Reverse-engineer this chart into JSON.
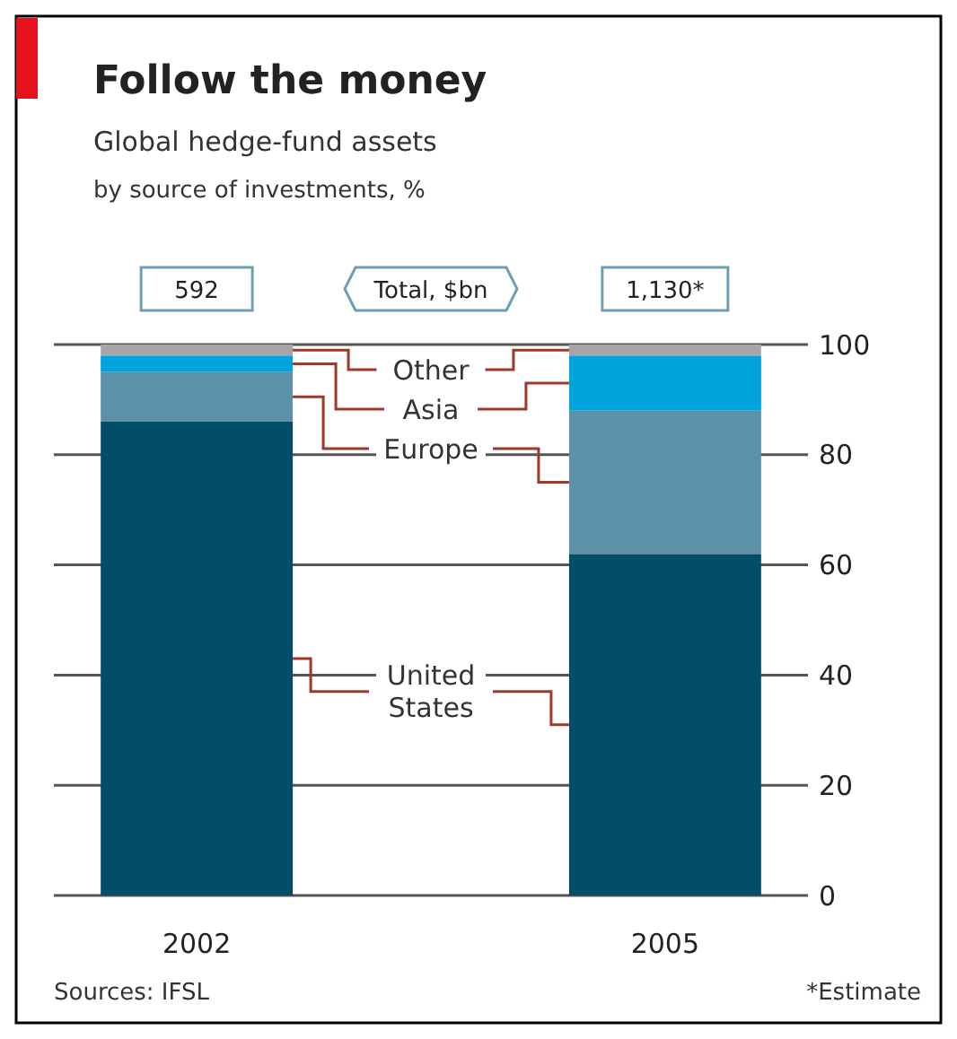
{
  "chart_data": {
    "type": "bar",
    "title": "Follow the money",
    "subtitle": "Global hedge-fund assets",
    "categories": [
      "2002",
      "2005"
    ],
    "series": [
      {
        "name": "United States",
        "color": "#024e68",
        "values": [
          86,
          62
        ]
      },
      {
        "name": "Europe",
        "color": "#5d91a8",
        "values": [
          9,
          26
        ]
      },
      {
        "name": "Asia",
        "color": "#00a3dc",
        "values": [
          3,
          10
        ]
      },
      {
        "name": "Other",
        "color": "#a6a6a6",
        "values": [
          2,
          2
        ]
      }
    ],
    "stacked": true,
    "ylim": [
      0,
      100
    ],
    "yticks": [
      0,
      20,
      40,
      60,
      80,
      100
    ],
    "grid": "y",
    "legend": false,
    "annotations": [
      "by source of investments, %",
      {
        "text": "592",
        "x": "2002",
        "y": 100
      },
      "Total, $bn",
      {
        "text": "1,130*",
        "x": "2005",
        "y": 100
      },
      "Sources: IFSL",
      "*Estimate"
    ]
  }
}
